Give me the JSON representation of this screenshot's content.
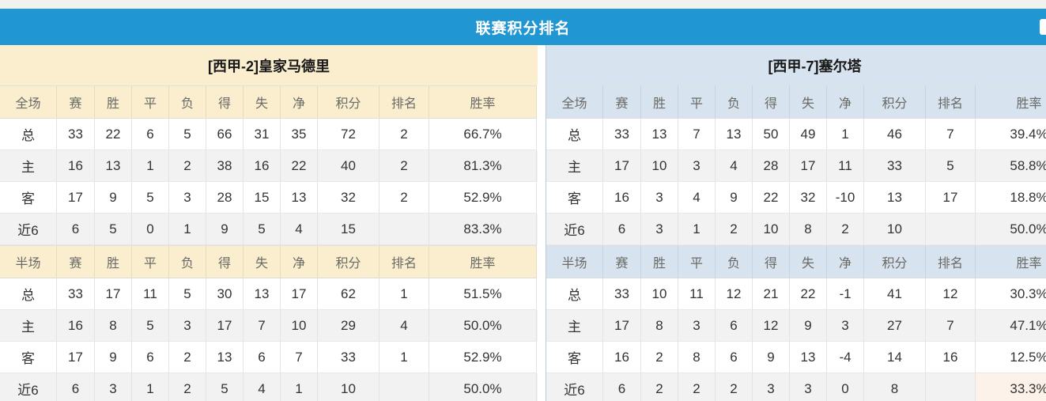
{
  "title_bar": {
    "title": "联赛积分排名"
  },
  "columns": [
    "赛",
    "胜",
    "平",
    "负",
    "得",
    "失",
    "净",
    "积分",
    "排名",
    "胜率"
  ],
  "colors": {
    "accent": "#2096d3",
    "cream_header": "#faeecf",
    "blue_header": "#d7e3ee",
    "row_alt": "#f2f2f2",
    "points_rate_red": "#e8432e",
    "rank_blue": "#3c80c2",
    "home_label_red": "#c23a56",
    "away_label_purple": "#5a52c6"
  },
  "tables": [
    {
      "team_header": "[西甲-2]皇家马德里",
      "theme": "cream",
      "sections": [
        {
          "label": "全场",
          "rows": [
            {
              "label": "总",
              "type": "total",
              "values": [
                "33",
                "22",
                "6",
                "5",
                "66",
                "31",
                "35"
              ],
              "points": "72",
              "rank": "2",
              "rate": "66.7%"
            },
            {
              "label": "主",
              "type": "home",
              "values": [
                "16",
                "13",
                "1",
                "2",
                "38",
                "16",
                "22"
              ],
              "points": "40",
              "rank": "2",
              "rate": "81.3%"
            },
            {
              "label": "客",
              "type": "away",
              "values": [
                "17",
                "9",
                "5",
                "3",
                "28",
                "15",
                "13"
              ],
              "points": "32",
              "rank": "2",
              "rate": "52.9%"
            },
            {
              "label": "近6",
              "type": "recent",
              "values": [
                "6",
                "5",
                "0",
                "1",
                "9",
                "5",
                "4"
              ],
              "points": "15",
              "rank": "",
              "rate": "83.3%"
            }
          ]
        },
        {
          "label": "半场",
          "rows": [
            {
              "label": "总",
              "type": "total",
              "values": [
                "33",
                "17",
                "11",
                "5",
                "30",
                "13",
                "17"
              ],
              "points": "62",
              "rank": "1",
              "rate": "51.5%"
            },
            {
              "label": "主",
              "type": "home",
              "values": [
                "16",
                "8",
                "5",
                "3",
                "17",
                "7",
                "10"
              ],
              "points": "29",
              "rank": "4",
              "rate": "50.0%"
            },
            {
              "label": "客",
              "type": "away",
              "values": [
                "17",
                "9",
                "6",
                "2",
                "13",
                "6",
                "7"
              ],
              "points": "33",
              "rank": "1",
              "rate": "52.9%"
            },
            {
              "label": "近6",
              "type": "recent",
              "values": [
                "6",
                "3",
                "1",
                "2",
                "5",
                "4",
                "1"
              ],
              "points": "10",
              "rank": "",
              "rate": "50.0%"
            }
          ]
        }
      ]
    },
    {
      "team_header": "[西甲-7]塞尔塔",
      "theme": "blue",
      "sections": [
        {
          "label": "全场",
          "rows": [
            {
              "label": "总",
              "type": "total",
              "values": [
                "33",
                "13",
                "7",
                "13",
                "50",
                "49",
                "1"
              ],
              "points": "46",
              "rank": "7",
              "rate": "39.4%"
            },
            {
              "label": "主",
              "type": "home",
              "values": [
                "17",
                "10",
                "3",
                "4",
                "28",
                "17",
                "11"
              ],
              "points": "33",
              "rank": "5",
              "rate": "58.8%"
            },
            {
              "label": "客",
              "type": "away",
              "values": [
                "16",
                "3",
                "4",
                "9",
                "22",
                "32",
                "-10"
              ],
              "points": "13",
              "rank": "17",
              "rate": "18.8%"
            },
            {
              "label": "近6",
              "type": "recent",
              "values": [
                "6",
                "3",
                "1",
                "2",
                "10",
                "8",
                "2"
              ],
              "points": "10",
              "rank": "",
              "rate": "50.0%"
            }
          ]
        },
        {
          "label": "半场",
          "rows": [
            {
              "label": "总",
              "type": "total",
              "values": [
                "33",
                "10",
                "11",
                "12",
                "21",
                "22",
                "-1"
              ],
              "points": "41",
              "rank": "12",
              "rate": "30.3%"
            },
            {
              "label": "主",
              "type": "home",
              "values": [
                "17",
                "8",
                "3",
                "6",
                "12",
                "9",
                "3"
              ],
              "points": "27",
              "rank": "7",
              "rate": "47.1%"
            },
            {
              "label": "客",
              "type": "away",
              "values": [
                "16",
                "2",
                "8",
                "6",
                "9",
                "13",
                "-4"
              ],
              "points": "14",
              "rank": "16",
              "rate": "12.5%"
            },
            {
              "label": "近6",
              "type": "recent",
              "values": [
                "6",
                "2",
                "2",
                "2",
                "3",
                "3",
                "0"
              ],
              "points": "8",
              "rank": "",
              "rate": "33.3%",
              "rate_highlight": true
            }
          ]
        }
      ]
    }
  ]
}
